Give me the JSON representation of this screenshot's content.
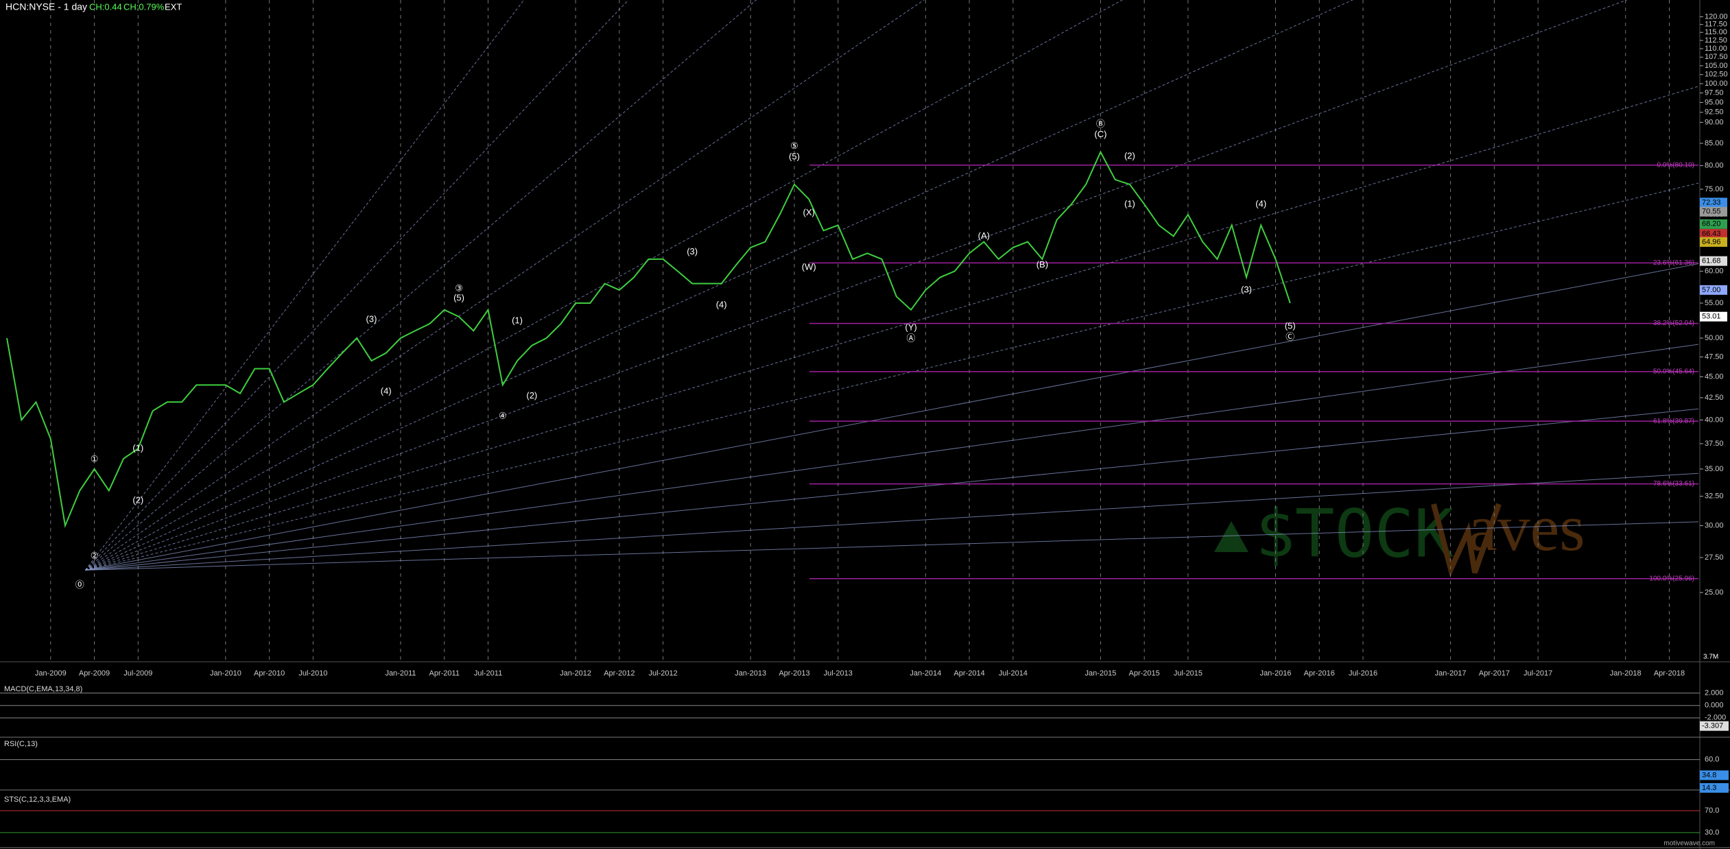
{
  "header": {
    "symbol": "HCN:NYSE - 1 day",
    "change": "CH:0.44",
    "change_pct": "CH:0.79%",
    "session": "EXT"
  },
  "chart_data": {
    "type": "line",
    "color": "#3fcf3f",
    "log_scale": true,
    "grid": true,
    "x": [
      "Oct-2008",
      "Nov-2008",
      "Dec-2008",
      "Jan-2009",
      "Feb-2009",
      "Mar-2009",
      "Apr-2009",
      "May-2009",
      "Jun-2009",
      "Jul-2009",
      "Aug-2009",
      "Sep-2009",
      "Oct-2009",
      "Nov-2009",
      "Dec-2009",
      "Jan-2010",
      "Feb-2010",
      "Mar-2010",
      "Apr-2010",
      "May-2010",
      "Jun-2010",
      "Jul-2010",
      "Aug-2010",
      "Sep-2010",
      "Oct-2010",
      "Nov-2010",
      "Dec-2010",
      "Jan-2011",
      "Feb-2011",
      "Mar-2011",
      "Apr-2011",
      "May-2011",
      "Jun-2011",
      "Jul-2011",
      "Aug-2011",
      "Sep-2011",
      "Oct-2011",
      "Nov-2011",
      "Dec-2011",
      "Jan-2012",
      "Feb-2012",
      "Mar-2012",
      "Apr-2012",
      "May-2012",
      "Jun-2012",
      "Jul-2012",
      "Aug-2012",
      "Sep-2012",
      "Oct-2012",
      "Nov-2012",
      "Dec-2012",
      "Jan-2013",
      "Feb-2013",
      "Mar-2013",
      "Apr-2013",
      "May-2013",
      "Jun-2013",
      "Jul-2013",
      "Aug-2013",
      "Sep-2013",
      "Oct-2013",
      "Nov-2013",
      "Dec-2013",
      "Jan-2014",
      "Feb-2014",
      "Mar-2014",
      "Apr-2014",
      "May-2014",
      "Jun-2014",
      "Jul-2014",
      "Aug-2014",
      "Sep-2014",
      "Oct-2014",
      "Nov-2014",
      "Dec-2014",
      "Jan-2015",
      "Feb-2015",
      "Mar-2015",
      "Apr-2015",
      "May-2015",
      "Jun-2015",
      "Jul-2015",
      "Aug-2015",
      "Sep-2015",
      "Oct-2015",
      "Nov-2015",
      "Dec-2015",
      "Jan-2016",
      "Feb-2016"
    ],
    "values": [
      50,
      40,
      42,
      38,
      30,
      33,
      35,
      33,
      36,
      37,
      41,
      42,
      42,
      44,
      44,
      44,
      43,
      46,
      46,
      42,
      43,
      44,
      46,
      48,
      50,
      47,
      48,
      50,
      51,
      52,
      54,
      53,
      51,
      54,
      44,
      47,
      49,
      50,
      52,
      55,
      55,
      58,
      57,
      59,
      62,
      62,
      60,
      58,
      58,
      58,
      61,
      64,
      65,
      70,
      76,
      73,
      67,
      68,
      62,
      63,
      62,
      56,
      54,
      57,
      59,
      60,
      63,
      65,
      62,
      64,
      65,
      62,
      69,
      72,
      76,
      83,
      77,
      76,
      72,
      68,
      66,
      70,
      65,
      62,
      68,
      59,
      68,
      62,
      55
    ],
    "xlim": [
      "Oct-2008",
      "Jun-2018"
    ],
    "xticks": [
      "Jan-2009",
      "Apr-2009",
      "Jul-2009",
      "Jan-2010",
      "Apr-2010",
      "Jul-2010",
      "Jan-2011",
      "Apr-2011",
      "Jul-2011",
      "Jan-2012",
      "Apr-2012",
      "Jul-2012",
      "Jan-2013",
      "Apr-2013",
      "Jul-2013",
      "Jan-2014",
      "Apr-2014",
      "Jul-2014",
      "Jan-2015",
      "Apr-2015",
      "Jul-2015",
      "Jan-2016",
      "Apr-2016",
      "Jul-2016",
      "Jan-2017",
      "Apr-2017",
      "Jul-2017",
      "Jan-2018",
      "Apr-2018"
    ],
    "ylim": [
      20.7,
      125.6
    ],
    "yticks": [
      {
        "value": 25,
        "label": "25.00"
      },
      {
        "value": 27.5,
        "label": "27.50"
      },
      {
        "value": 30,
        "label": "30.00"
      },
      {
        "value": 32.5,
        "label": "32.50"
      },
      {
        "value": 35,
        "label": "35.00"
      },
      {
        "value": 37.5,
        "label": "37.50"
      },
      {
        "value": 40,
        "label": "40.00"
      },
      {
        "value": 42.5,
        "label": "42.50"
      },
      {
        "value": 45,
        "label": "45.00"
      },
      {
        "value": 47.5,
        "label": "47.50"
      },
      {
        "value": 50,
        "label": "50.00"
      },
      {
        "value": 55,
        "label": "55.00"
      },
      {
        "value": 60,
        "label": "60.00"
      },
      {
        "value": 65,
        "label": "65.00"
      },
      {
        "value": 70,
        "label": "70.00"
      },
      {
        "value": 75,
        "label": "75.00"
      },
      {
        "value": 80,
        "label": "80.00"
      },
      {
        "value": 85,
        "label": "85.00"
      },
      {
        "value": 90,
        "label": "90.00"
      },
      {
        "value": 92.5,
        "label": "92.50"
      },
      {
        "value": 95,
        "label": "95.00"
      },
      {
        "value": 97.5,
        "label": "97.50"
      },
      {
        "value": 100,
        "label": "100.00"
      },
      {
        "value": 102.5,
        "label": "102.50"
      },
      {
        "value": 105,
        "label": "105.00"
      },
      {
        "value": 107.5,
        "label": "107.50"
      },
      {
        "value": 110,
        "label": "110.00"
      },
      {
        "value": 112.5,
        "label": "112.50"
      },
      {
        "value": 115,
        "label": "115.00"
      },
      {
        "value": 117.5,
        "label": "117.50"
      },
      {
        "value": 120,
        "label": "120.00"
      }
    ],
    "price_tags": [
      {
        "value": 72.33,
        "color": "#3a8ee6"
      },
      {
        "value": 70.55,
        "color": "#9a9a9a"
      },
      {
        "value": 68.2,
        "label": "68.20",
        "color": "#2f9f4f"
      },
      {
        "value": 66.43,
        "color": "#c03030"
      },
      {
        "value": 64.96,
        "color": "#c9b020"
      },
      {
        "value": 61.68,
        "color": "#dddddd"
      },
      {
        "value": 57,
        "label": "57.00",
        "color": "#8fa8ff"
      },
      {
        "value": 53.01,
        "color": "#ffffff"
      }
    ],
    "volume_tag": "3.7M",
    "fib_levels": [
      {
        "value": 80.1,
        "label": "0.0%(80.10)"
      },
      {
        "value": 61.36,
        "label": "23.6%(61.36)"
      },
      {
        "value": 52.04,
        "label": "38.2%(52.04)"
      },
      {
        "value": 45.64,
        "label": "50.0%(45.64)"
      },
      {
        "value": 39.87,
        "label": "61.8%(39.87)"
      },
      {
        "value": 33.61,
        "label": "78.6%(33.61)"
      },
      {
        "value": 25.96,
        "label": "100.0%(25.96)"
      }
    ],
    "annotations": [
      {
        "text": "⓪",
        "x": "Mar-2009",
        "y": 25.5
      },
      {
        "text": "②",
        "x": "Apr-2009",
        "y": 27.6
      },
      {
        "text": "①",
        "x": "Apr-2009",
        "y": 35.9
      },
      {
        "text": "(1)",
        "x": "Jul-2009",
        "y": 37
      },
      {
        "text": "(2)",
        "x": "Jul-2009",
        "y": 32.1
      },
      {
        "text": "(3)",
        "x": "Nov-2010",
        "y": 52.6
      },
      {
        "text": "(4)",
        "x": "Dec-2010",
        "y": 43.2
      },
      {
        "text": "③",
        "x": "May-2011",
        "y": 57.2
      },
      {
        "text": "(5)",
        "x": "May-2011",
        "y": 55.7
      },
      {
        "text": "④",
        "x": "Aug-2011",
        "y": 40.4
      },
      {
        "text": "(1)",
        "x": "Sep-2011",
        "y": 52.4
      },
      {
        "text": "(2)",
        "x": "Oct-2011",
        "y": 42.7
      },
      {
        "text": "(3)",
        "x": "Sep-2012",
        "y": 63.2
      },
      {
        "text": "(4)",
        "x": "Nov-2012",
        "y": 54.7
      },
      {
        "text": "⑤",
        "x": "Apr-2013",
        "y": 84.3
      },
      {
        "text": "(5)",
        "x": "Apr-2013",
        "y": 81.9
      },
      {
        "text": "(X)",
        "x": "May-2013",
        "y": 70.3
      },
      {
        "text": "(W)",
        "x": "May-2013",
        "y": 60.6
      },
      {
        "text": "(Y)",
        "x": "Dec-2013",
        "y": 51.4
      },
      {
        "text": "Ⓐ",
        "x": "Dec-2013",
        "y": 49.9
      },
      {
        "text": "(A)",
        "x": "May-2014",
        "y": 66
      },
      {
        "text": "(B)",
        "x": "Sep-2014",
        "y": 61
      },
      {
        "text": "Ⓑ",
        "x": "Jan-2015",
        "y": 89.5
      },
      {
        "text": "(C)",
        "x": "Jan-2015",
        "y": 87
      },
      {
        "text": "(2)",
        "x": "Mar-2015",
        "y": 82
      },
      {
        "text": "(1)",
        "x": "Mar-2015",
        "y": 72
      },
      {
        "text": "(3)",
        "x": "Nov-2015",
        "y": 57
      },
      {
        "text": "(4)",
        "x": "Dec-2015",
        "y": 72
      },
      {
        "text": "(5)",
        "x": "Feb-2016",
        "y": 51.6
      },
      {
        "text": "Ⓒ",
        "x": "Feb-2016",
        "y": 50.1
      }
    ]
  },
  "indicators": [
    {
      "title": "MACD(C,EMA,13,34,8)",
      "ylim": [
        -5,
        3.5
      ],
      "yticks": [
        {
          "value": 2,
          "label": "2.000"
        },
        {
          "value": 0,
          "label": "0.000"
        },
        {
          "value": -2,
          "label": "-2.000"
        }
      ],
      "tags": [
        -3.307
      ]
    },
    {
      "title": "RSI(C,13)",
      "ylim": [
        12,
        94
      ],
      "yticks": [
        {
          "value": 60,
          "label": "60.0"
        }
      ],
      "tags": [
        34.8,
        14.3
      ]
    },
    {
      "title": "STS(C,12,3,3,EMA)",
      "ylim": [
        4,
        100
      ],
      "yticks": [
        {
          "value": 70,
          "label": "70.0"
        },
        {
          "value": 30,
          "label": "30.0"
        }
      ],
      "tags": []
    }
  ],
  "watermark": {
    "left": "$TOCK",
    "right": "aves"
  },
  "footer": "motivewave.com"
}
